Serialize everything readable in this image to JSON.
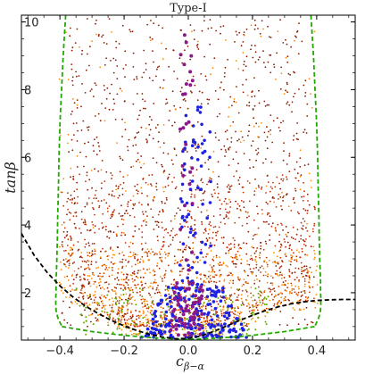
{
  "chart_data": {
    "type": "scatter",
    "title": "Type-I",
    "xlabel": "c",
    "xlabel_sub": "β−α",
    "ylabel": "tanβ",
    "xlim": [
      -0.52,
      0.52
    ],
    "ylim": [
      0.6,
      10.2
    ],
    "x_ticks": [
      -0.4,
      -0.2,
      0.0,
      0.2,
      0.4
    ],
    "x_tick_labels": [
      "−0.4",
      "−0.2",
      "0.0",
      "0.2",
      "0.4"
    ],
    "y_ticks": [
      2,
      4,
      6,
      8,
      10
    ],
    "y_tick_labels": [
      "2",
      "4",
      "6",
      "8",
      "10"
    ],
    "grid": false,
    "colors": {
      "dark_red": "#8b1a00",
      "red": "#c83200",
      "orange": "#ff8c00",
      "green": "#6aa800",
      "blue": "#1f22e0",
      "purple": "#8a1a8a",
      "green_boundary": "#22a800",
      "black_boundary": "#000000"
    },
    "series": [
      {
        "color_key": "green_boundary",
        "style": "dashed",
        "x": [
          -0.382,
          -0.39,
          -0.395,
          -0.4,
          -0.403,
          -0.405,
          -0.407,
          -0.408,
          -0.409,
          -0.41,
          -0.411,
          -0.412,
          -0.412,
          -0.412,
          -0.413,
          -0.413,
          -0.413,
          -0.412,
          -0.411,
          -0.409,
          -0.407,
          -0.405,
          -0.402,
          -0.4,
          -0.398,
          -0.396,
          -0.394
        ],
        "y": [
          10.2,
          9.0,
          8.0,
          7.0,
          6.0,
          5.0,
          4.2,
          3.6,
          3.2,
          2.9,
          2.6,
          2.4,
          2.2,
          2.0,
          1.85,
          1.7,
          1.6,
          1.5,
          1.42,
          1.35,
          1.28,
          1.22,
          1.17,
          1.12,
          1.08,
          1.04,
          1.0
        ]
      },
      {
        "color_key": "green_boundary",
        "style": "dashed",
        "x": [
          0.382,
          0.39,
          0.395,
          0.4,
          0.403,
          0.405,
          0.407,
          0.408,
          0.409,
          0.41,
          0.411,
          0.412,
          0.412,
          0.412,
          0.413,
          0.413,
          0.413,
          0.412,
          0.411,
          0.409,
          0.407,
          0.405,
          0.402,
          0.4,
          0.398,
          0.396,
          0.394
        ],
        "y": [
          10.2,
          9.0,
          8.0,
          7.0,
          6.0,
          5.0,
          4.2,
          3.6,
          3.2,
          2.9,
          2.6,
          2.4,
          2.2,
          2.0,
          1.85,
          1.7,
          1.6,
          1.5,
          1.42,
          1.35,
          1.28,
          1.22,
          1.17,
          1.12,
          1.08,
          1.04,
          1.0
        ]
      },
      {
        "color_key": "green_boundary",
        "style": "dashed",
        "x": [
          -0.394,
          -0.3,
          -0.2,
          -0.1,
          0.0,
          0.1,
          0.2,
          0.3,
          0.394
        ],
        "y": [
          1.0,
          0.85,
          0.74,
          0.66,
          0.62,
          0.66,
          0.74,
          0.85,
          1.0
        ]
      },
      {
        "color_key": "black_boundary",
        "style": "dashed",
        "x": [
          -0.52,
          -0.48,
          -0.44,
          -0.4,
          -0.36,
          -0.32,
          -0.28,
          -0.24,
          -0.2,
          -0.16,
          -0.12,
          -0.08,
          -0.04,
          0.0,
          0.04,
          0.08,
          0.12,
          0.16,
          0.2,
          0.24,
          0.28,
          0.32,
          0.36,
          0.4,
          0.44,
          0.48,
          0.52
        ],
        "y": [
          3.75,
          3.1,
          2.6,
          2.2,
          1.88,
          1.6,
          1.38,
          1.18,
          1.02,
          0.88,
          0.77,
          0.69,
          0.64,
          0.65,
          0.72,
          0.86,
          1.02,
          1.18,
          1.33,
          1.47,
          1.58,
          1.67,
          1.73,
          1.77,
          1.79,
          1.8,
          1.8
        ]
      }
    ],
    "scatter_regions": [
      {
        "color_key": "dark_red",
        "points_estimate": 1200,
        "x_range": [
          -0.39,
          0.39
        ],
        "y_range": [
          1.0,
          10.2
        ],
        "density": "higher at low tanβ"
      },
      {
        "color_key": "red",
        "points_estimate": 1100,
        "x_range": [
          -0.4,
          0.4
        ],
        "y_range": [
          1.0,
          5.5
        ]
      },
      {
        "color_key": "orange",
        "points_estimate": 900,
        "x_range": [
          -0.41,
          0.41
        ],
        "y_range": [
          0.7,
          10.0
        ],
        "density": "concentrated below 3"
      },
      {
        "color_key": "green",
        "points_estimate": 180,
        "x_range": [
          -0.36,
          0.25
        ],
        "y_range": [
          0.7,
          2.2
        ]
      },
      {
        "color_key": "blue",
        "points_estimate": 260,
        "x_range": [
          -0.2,
          0.2
        ],
        "y_range": [
          0.65,
          7.5
        ],
        "density": "narrow band near c=0 at high tanβ, wider near tanβ≈1"
      },
      {
        "color_key": "purple",
        "points_estimate": 90,
        "x_range": [
          -0.08,
          0.06
        ],
        "y_range": [
          0.7,
          9.8
        ],
        "density": "tight band around c=0"
      }
    ]
  }
}
